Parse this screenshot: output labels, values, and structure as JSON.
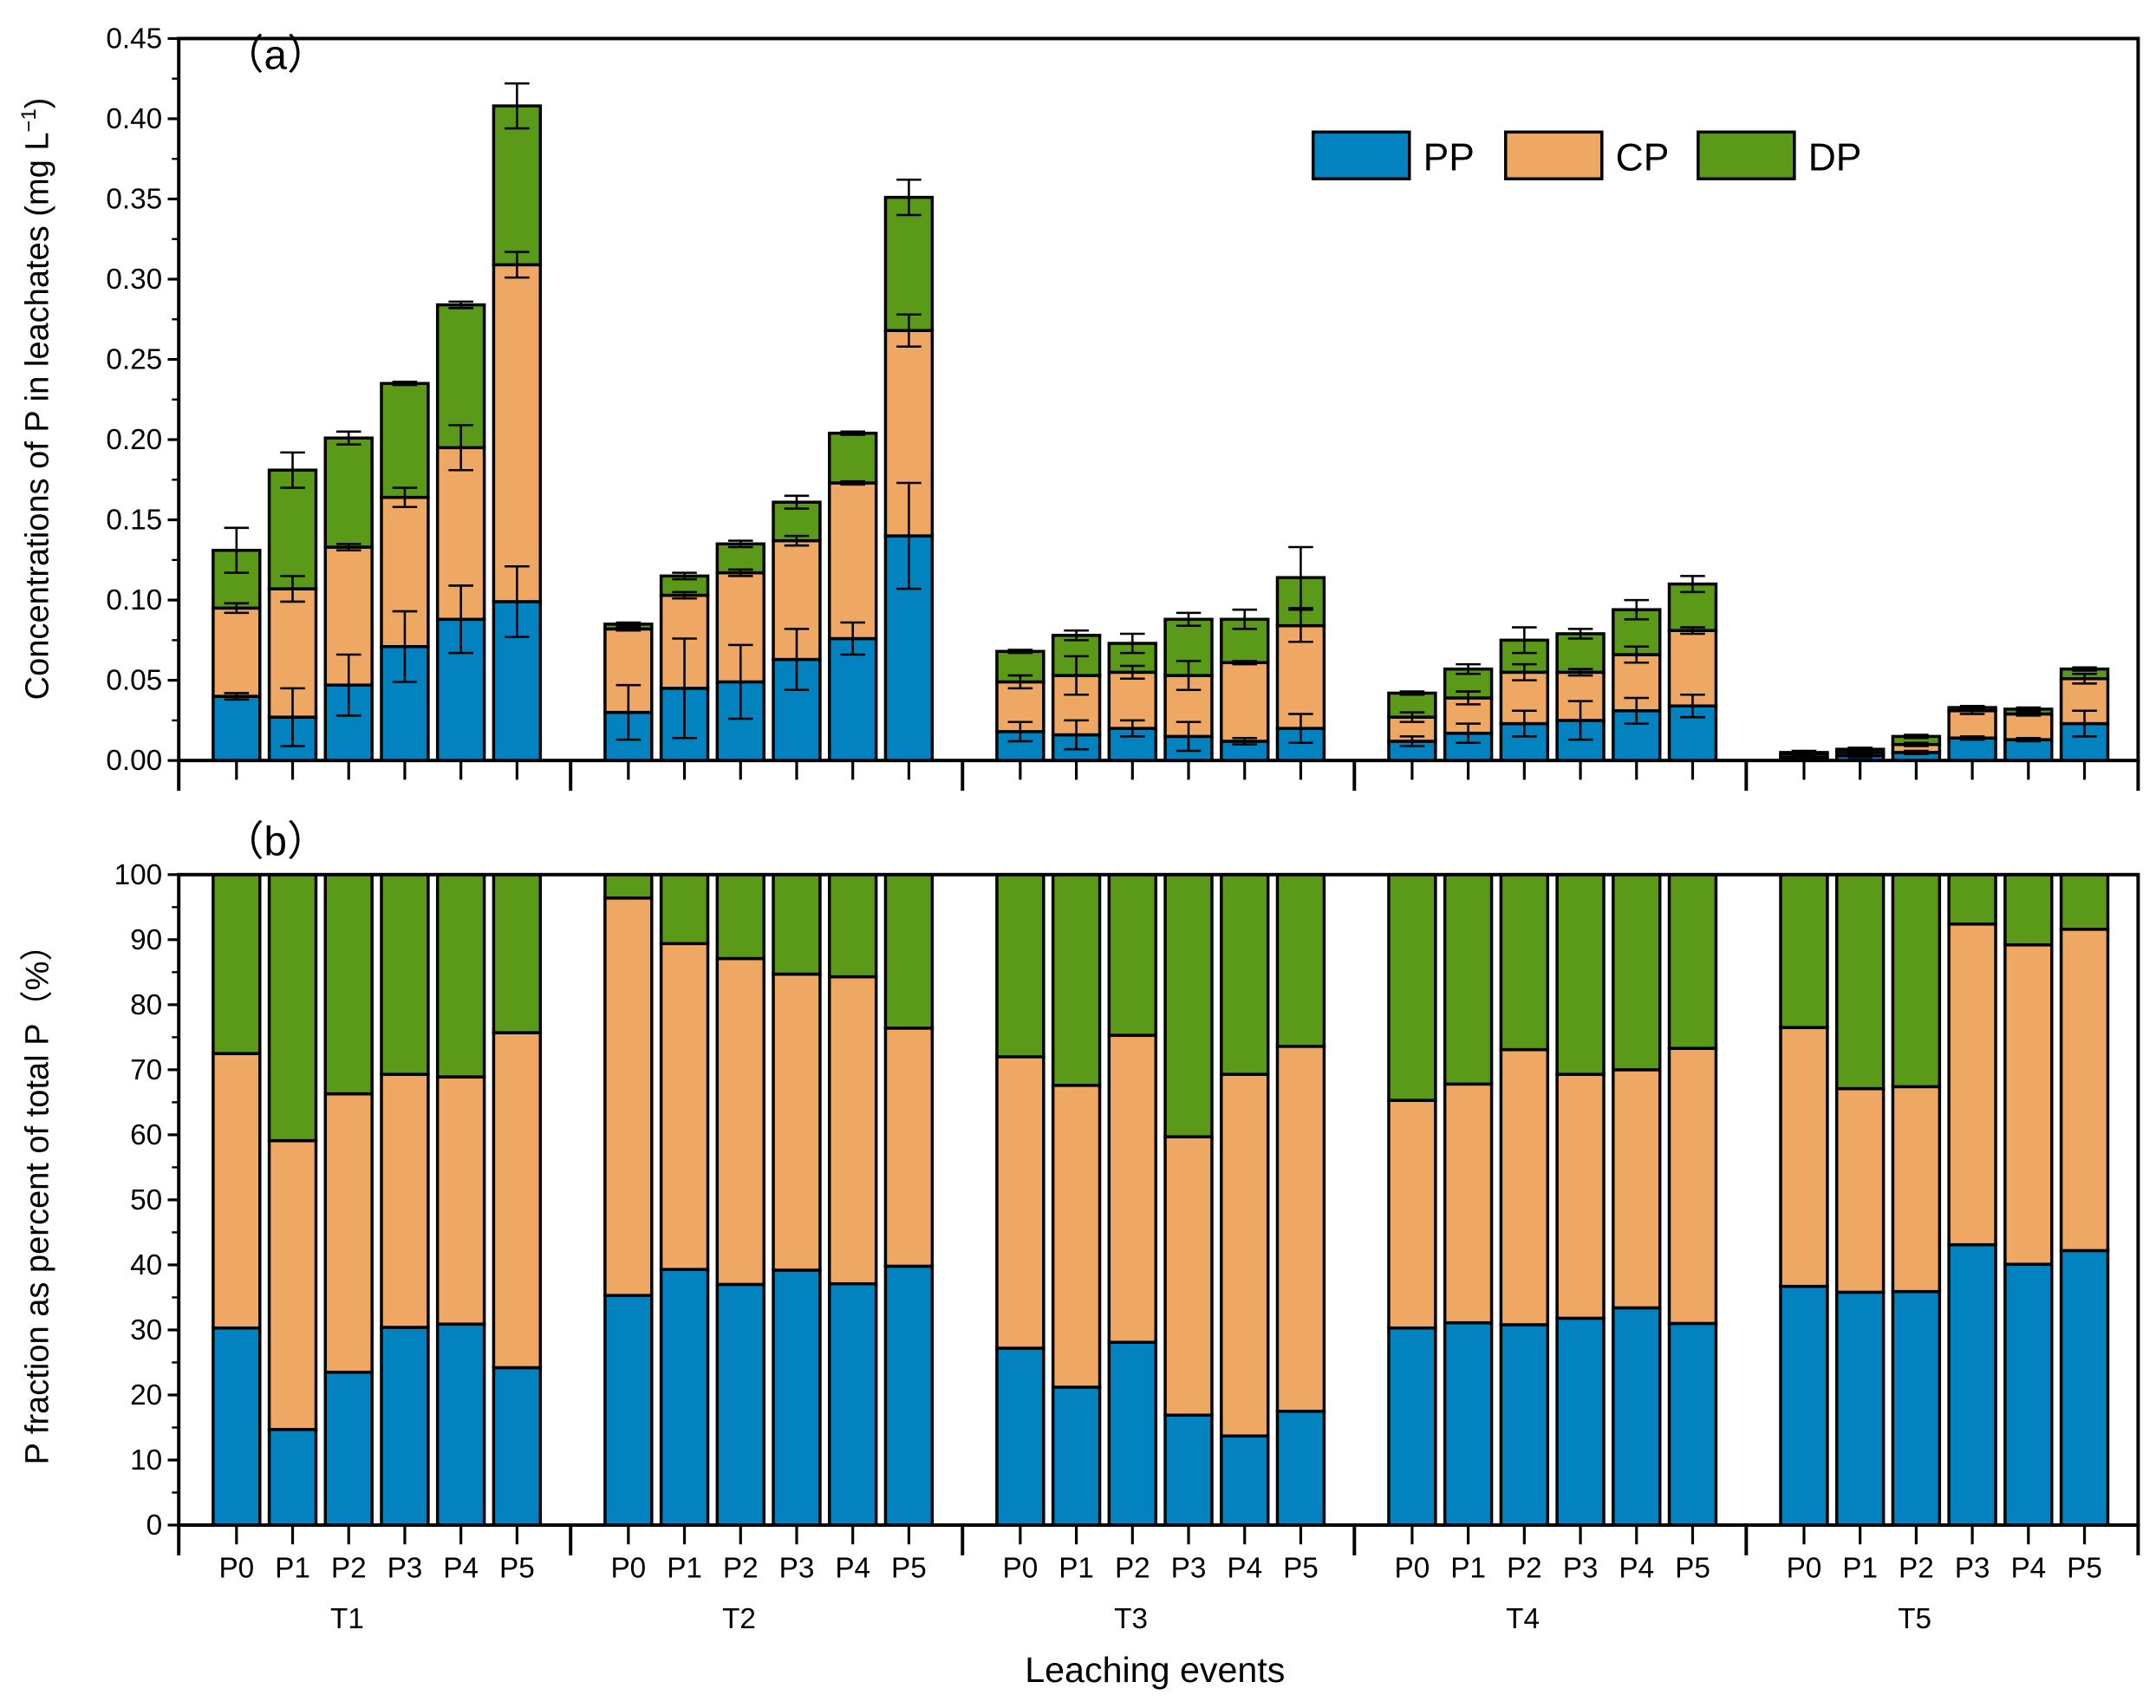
{
  "chart_data": [
    {
      "panel": "（a）",
      "type": "stacked-bar",
      "ylabel": "Concentrations of P in leachates (mg L",
      "ylabel_sup": "−1",
      "ylabel_end": ")",
      "ylim": [
        0,
        0.45
      ],
      "yticks": [
        "0.00",
        "0.05",
        "0.10",
        "0.15",
        "0.20",
        "0.25",
        "0.30",
        "0.35",
        "0.40",
        "0.45"
      ],
      "groups": [
        "T1",
        "T2",
        "T3",
        "T4",
        "T5"
      ],
      "categories": [
        "P0",
        "P1",
        "P2",
        "P3",
        "P4",
        "P5"
      ],
      "legend": {
        "placement": "top-right",
        "entries": [
          "PP",
          "CP",
          "DP"
        ]
      },
      "colors": {
        "PP": "#0282BE",
        "CP": "#EFA764",
        "DP": "#5A9A18"
      },
      "series": [
        {
          "name": "PP",
          "values": [
            [
              0.04,
              0.027,
              0.047,
              0.071,
              0.088,
              0.099
            ],
            [
              0.03,
              0.045,
              0.049,
              0.063,
              0.076,
              0.14
            ],
            [
              0.018,
              0.016,
              0.02,
              0.015,
              0.012,
              0.02
            ],
            [
              0.012,
              0.017,
              0.023,
              0.025,
              0.031,
              0.034
            ],
            [
              0.002,
              0.003,
              0.005,
              0.014,
              0.013,
              0.023
            ]
          ],
          "errors": [
            [
              0.002,
              0.018,
              0.019,
              0.022,
              0.021,
              0.022
            ],
            [
              0.017,
              0.031,
              0.023,
              0.019,
              0.01,
              0.033
            ],
            [
              0.006,
              0.009,
              0.005,
              0.009,
              0.002,
              0.009
            ],
            [
              0.003,
              0.006,
              0.008,
              0.012,
              0.008,
              0.007
            ],
            [
              0.001,
              0.001,
              0.001,
              0.001,
              0.001,
              0.008
            ]
          ]
        },
        {
          "name": "CP",
          "values": [
            [
              0.055,
              0.08,
              0.086,
              0.093,
              0.107,
              0.21
            ],
            [
              0.052,
              0.058,
              0.068,
              0.074,
              0.097,
              0.128
            ],
            [
              0.031,
              0.037,
              0.035,
              0.038,
              0.049,
              0.064
            ],
            [
              0.015,
              0.022,
              0.032,
              0.03,
              0.035,
              0.047
            ],
            [
              0.002,
              0.002,
              0.005,
              0.017,
              0.016,
              0.028
            ]
          ],
          "errors": [
            [
              0.003,
              0.008,
              0.002,
              0.006,
              0.014,
              0.008
            ],
            [
              0.001,
              0.002,
              0.002,
              0.003,
              0.001,
              0.01
            ],
            [
              0.004,
              0.012,
              0.004,
              0.009,
              0.001,
              0.01
            ],
            [
              0.003,
              0.004,
              0.005,
              0.002,
              0.005,
              0.002
            ],
            [
              0.001,
              0.001,
              0.001,
              0.002,
              0.001,
              0.003
            ]
          ]
        },
        {
          "name": "DP",
          "values": [
            [
              0.036,
              0.074,
              0.068,
              0.071,
              0.089,
              0.099
            ],
            [
              0.003,
              0.012,
              0.018,
              0.024,
              0.031,
              0.083
            ],
            [
              0.019,
              0.025,
              0.018,
              0.035,
              0.027,
              0.03
            ],
            [
              0.015,
              0.018,
              0.02,
              0.024,
              0.028,
              0.029
            ],
            [
              0.001,
              0.002,
              0.005,
              0.002,
              0.003,
              0.006
            ]
          ],
          "errors": [
            [
              0.014,
              0.011,
              0.004,
              0.001,
              0.002,
              0.014
            ],
            [
              0.001,
              0.002,
              0.002,
              0.004,
              0.001,
              0.011
            ],
            [
              0.001,
              0.003,
              0.006,
              0.004,
              0.006,
              0.019
            ],
            [
              0.001,
              0.003,
              0.008,
              0.003,
              0.006,
              0.005
            ],
            [
              0.001,
              0.001,
              0.001,
              0.001,
              0.001,
              0.001
            ]
          ]
        }
      ]
    },
    {
      "panel": "（b）",
      "type": "stacked-bar",
      "ylabel": "P fraction as percent of total P（%）",
      "xlabel": "Leaching events",
      "ylim": [
        0,
        100
      ],
      "yticks": [
        "0",
        "10",
        "20",
        "30",
        "40",
        "50",
        "60",
        "70",
        "80",
        "90",
        "100"
      ],
      "groups": [
        "T1",
        "T2",
        "T3",
        "T4",
        "T5"
      ],
      "categories": [
        "P0",
        "P1",
        "P2",
        "P3",
        "P4",
        "P5"
      ],
      "series": [
        {
          "name": "PP",
          "values": [
            [
              30.3,
              14.7,
              23.5,
              30.4,
              30.9,
              24.2
            ],
            [
              35.3,
              39.3,
              37.0,
              39.2,
              37.1,
              39.8
            ],
            [
              27.2,
              21.2,
              28.1,
              16.9,
              13.7,
              17.5
            ],
            [
              30.3,
              31.1,
              30.8,
              31.8,
              33.4,
              31.0
            ],
            [
              36.7,
              35.8,
              35.9,
              43.1,
              40.1,
              42.2
            ]
          ]
        },
        {
          "name": "CP",
          "values": [
            [
              42.2,
              44.4,
              42.8,
              38.9,
              38.0,
              51.5
            ],
            [
              61.1,
              50.1,
              50.1,
              45.5,
              47.2,
              36.6
            ],
            [
              44.8,
              46.4,
              47.2,
              42.8,
              55.6,
              56.1
            ],
            [
              35.0,
              36.7,
              42.3,
              37.5,
              36.6,
              42.3
            ],
            [
              39.8,
              31.3,
              31.5,
              49.3,
              49.1,
              49.4
            ]
          ]
        },
        {
          "name": "DP",
          "values": [
            [
              27.5,
              40.9,
              33.7,
              30.7,
              31.1,
              24.3
            ],
            [
              3.6,
              10.6,
              12.9,
              15.3,
              15.7,
              23.6
            ],
            [
              28.0,
              32.4,
              24.7,
              40.3,
              30.7,
              26.4
            ],
            [
              34.7,
              32.2,
              26.9,
              30.7,
              30.0,
              26.7
            ],
            [
              23.5,
              32.9,
              32.6,
              7.6,
              10.8,
              8.4
            ]
          ]
        }
      ]
    }
  ]
}
